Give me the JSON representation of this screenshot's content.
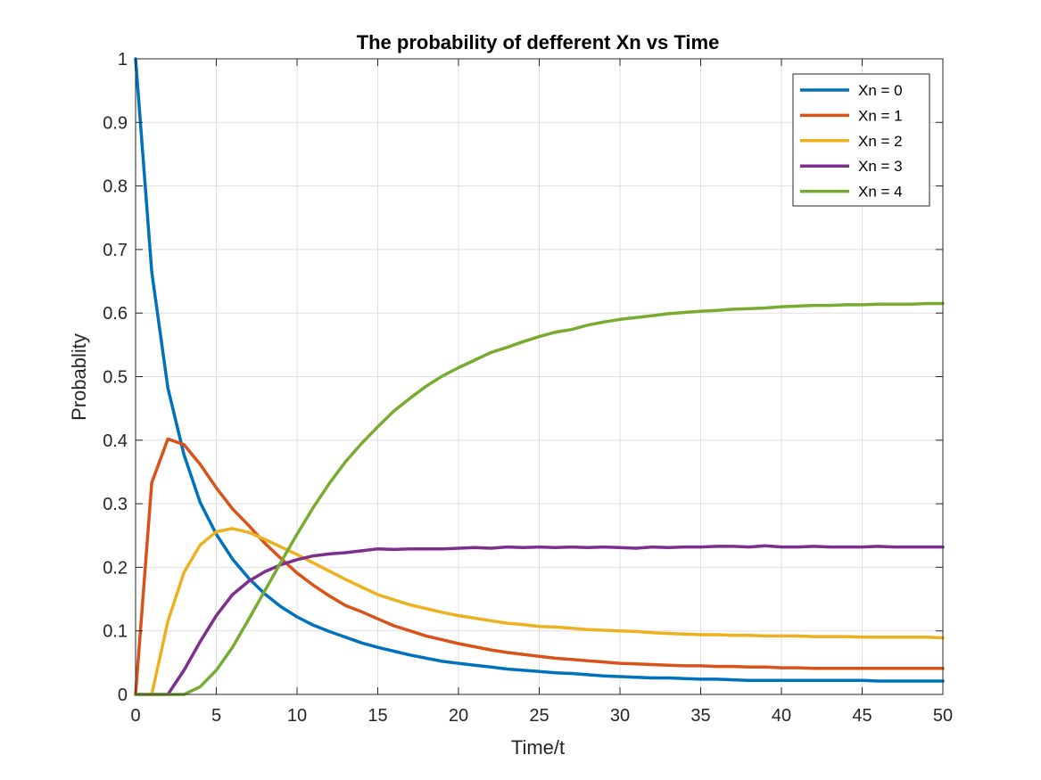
{
  "chart_data": {
    "type": "line",
    "title": "The probability of defferent Xn vs Time",
    "xlabel": "Time/t",
    "ylabel": "Probablity",
    "xlim": [
      0,
      50
    ],
    "ylim": [
      0,
      1
    ],
    "xticks": [
      0,
      5,
      10,
      15,
      20,
      25,
      30,
      35,
      40,
      45,
      50
    ],
    "xtick_labels": [
      "0",
      "5",
      "10",
      "15",
      "20",
      "25",
      "30",
      "35",
      "40",
      "45",
      "50"
    ],
    "yticks": [
      0,
      0.1,
      0.2,
      0.3,
      0.4,
      0.5,
      0.6,
      0.7,
      0.8,
      0.9,
      1
    ],
    "ytick_labels": [
      "0",
      "0.1",
      "0.2",
      "0.3",
      "0.4",
      "0.5",
      "0.6",
      "0.7",
      "0.8",
      "0.9",
      "1"
    ],
    "grid": true,
    "legend_position": "top-right",
    "x": [
      0,
      1,
      2,
      3,
      4,
      5,
      6,
      7,
      8,
      9,
      10,
      11,
      12,
      13,
      14,
      15,
      16,
      17,
      18,
      19,
      20,
      21,
      22,
      23,
      24,
      25,
      26,
      27,
      28,
      29,
      30,
      31,
      32,
      33,
      34,
      35,
      36,
      37,
      38,
      39,
      40,
      41,
      42,
      43,
      44,
      45,
      46,
      47,
      48,
      49,
      50
    ],
    "series": [
      {
        "name": "Xn = 0",
        "color": "#0072BD",
        "values": [
          1.0,
          0.665,
          0.482,
          0.377,
          0.302,
          0.252,
          0.213,
          0.183,
          0.158,
          0.138,
          0.122,
          0.109,
          0.099,
          0.09,
          0.081,
          0.074,
          0.068,
          0.062,
          0.057,
          0.052,
          0.049,
          0.046,
          0.043,
          0.04,
          0.038,
          0.036,
          0.034,
          0.033,
          0.031,
          0.029,
          0.028,
          0.027,
          0.026,
          0.026,
          0.025,
          0.024,
          0.024,
          0.023,
          0.022,
          0.022,
          0.022,
          0.022,
          0.022,
          0.022,
          0.022,
          0.022,
          0.021,
          0.021,
          0.021,
          0.021,
          0.021
        ]
      },
      {
        "name": "Xn = 1",
        "color": "#D95319",
        "values": [
          0.0,
          0.333,
          0.402,
          0.393,
          0.362,
          0.325,
          0.292,
          0.266,
          0.238,
          0.214,
          0.191,
          0.172,
          0.155,
          0.14,
          0.13,
          0.119,
          0.108,
          0.1,
          0.092,
          0.086,
          0.08,
          0.075,
          0.07,
          0.066,
          0.063,
          0.06,
          0.057,
          0.055,
          0.053,
          0.051,
          0.049,
          0.048,
          0.047,
          0.046,
          0.045,
          0.045,
          0.044,
          0.044,
          0.043,
          0.043,
          0.042,
          0.042,
          0.041,
          0.041,
          0.041,
          0.041,
          0.041,
          0.041,
          0.041,
          0.041,
          0.041
        ]
      },
      {
        "name": "Xn = 2",
        "color": "#EDB120",
        "values": [
          0.0,
          0.0,
          0.115,
          0.192,
          0.235,
          0.256,
          0.261,
          0.255,
          0.244,
          0.232,
          0.22,
          0.207,
          0.194,
          0.181,
          0.169,
          0.157,
          0.149,
          0.141,
          0.135,
          0.129,
          0.124,
          0.12,
          0.116,
          0.112,
          0.11,
          0.107,
          0.106,
          0.104,
          0.102,
          0.101,
          0.1,
          0.099,
          0.097,
          0.096,
          0.095,
          0.094,
          0.094,
          0.093,
          0.093,
          0.092,
          0.092,
          0.092,
          0.091,
          0.091,
          0.091,
          0.09,
          0.09,
          0.09,
          0.09,
          0.09,
          0.089
        ]
      },
      {
        "name": "Xn = 3",
        "color": "#7E2F8E",
        "values": [
          0.0,
          0.0,
          0.0,
          0.038,
          0.083,
          0.124,
          0.157,
          0.178,
          0.193,
          0.204,
          0.212,
          0.218,
          0.221,
          0.223,
          0.226,
          0.229,
          0.228,
          0.229,
          0.229,
          0.229,
          0.23,
          0.231,
          0.23,
          0.232,
          0.231,
          0.232,
          0.231,
          0.232,
          0.231,
          0.232,
          0.231,
          0.23,
          0.232,
          0.231,
          0.232,
          0.232,
          0.233,
          0.233,
          0.232,
          0.234,
          0.232,
          0.232,
          0.233,
          0.232,
          0.232,
          0.232,
          0.233,
          0.232,
          0.232,
          0.232,
          0.232
        ]
      },
      {
        "name": "Xn = 4",
        "color": "#77AC30",
        "values": [
          0.0,
          0.0,
          0.0,
          0.0,
          0.012,
          0.038,
          0.074,
          0.118,
          0.163,
          0.208,
          0.252,
          0.294,
          0.332,
          0.366,
          0.395,
          0.421,
          0.446,
          0.466,
          0.485,
          0.501,
          0.514,
          0.526,
          0.538,
          0.546,
          0.555,
          0.563,
          0.57,
          0.574,
          0.581,
          0.586,
          0.59,
          0.593,
          0.596,
          0.599,
          0.601,
          0.603,
          0.604,
          0.606,
          0.607,
          0.608,
          0.61,
          0.611,
          0.612,
          0.612,
          0.613,
          0.613,
          0.614,
          0.614,
          0.614,
          0.615,
          0.615
        ]
      }
    ]
  }
}
